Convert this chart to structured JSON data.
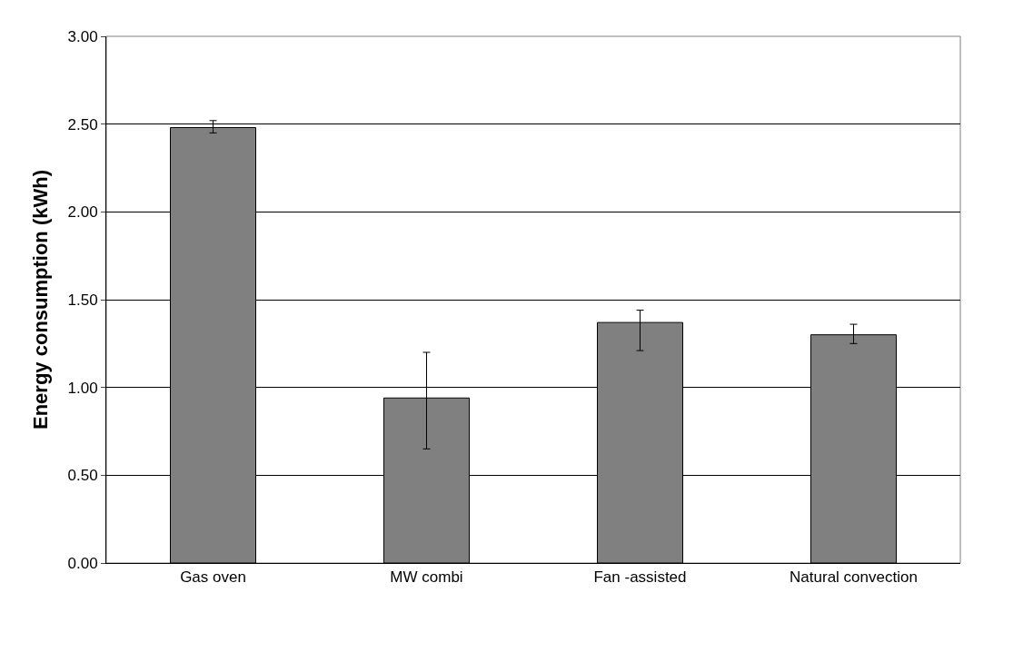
{
  "chart_data": {
    "type": "bar",
    "ylabel": "Energy consumption (kWh)",
    "categories": [
      "Gas oven",
      "MW combi",
      "Fan -assisted",
      "Natural convection"
    ],
    "values": [
      2.48,
      0.94,
      1.37,
      1.3
    ],
    "errors": [
      [
        2.45,
        2.52
      ],
      [
        0.65,
        1.2
      ],
      [
        1.21,
        1.44
      ],
      [
        1.25,
        1.36
      ]
    ],
    "color": "#808080",
    "ylim": [
      0,
      3
    ],
    "yticks": [
      {
        "value": 0,
        "label": "0.00"
      },
      {
        "value": 0.5,
        "label": "0.50"
      },
      {
        "value": 1,
        "label": "1.00"
      },
      {
        "value": 1.5,
        "label": "1.50"
      },
      {
        "value": 2,
        "label": "2.00"
      },
      {
        "value": 2.5,
        "label": "2.50"
      },
      {
        "value": 3,
        "label": "3.00"
      }
    ],
    "grid": "y"
  }
}
